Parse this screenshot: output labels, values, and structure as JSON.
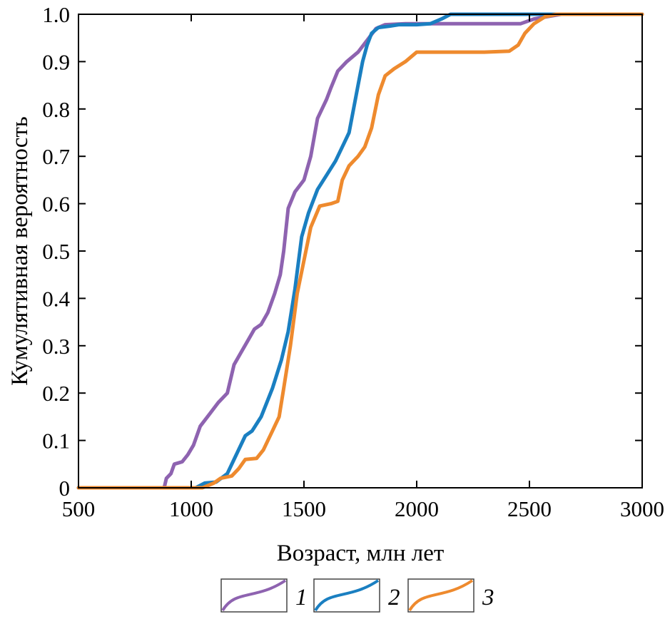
{
  "chart_data": {
    "type": "line",
    "xlabel": "Возраст, млн лет",
    "ylabel": "Кумулятивная вероятность",
    "xlim": [
      500,
      3000
    ],
    "ylim": [
      0,
      1.0
    ],
    "x_ticks": [
      "500",
      "1000",
      "1500",
      "2000",
      "2500",
      "3000"
    ],
    "y_ticks": [
      "0",
      "0.1",
      "0.2",
      "0.3",
      "0.4",
      "0.5",
      "0.6",
      "0.7",
      "0.8",
      "0.9",
      "1.0"
    ],
    "legend_position": "bottom",
    "series": [
      {
        "name": "1",
        "color": "#8E63B0",
        "points": [
          [
            500,
            0
          ],
          [
            880,
            0
          ],
          [
            890,
            0.02
          ],
          [
            910,
            0.03
          ],
          [
            925,
            0.05
          ],
          [
            960,
            0.055
          ],
          [
            985,
            0.07
          ],
          [
            1010,
            0.09
          ],
          [
            1040,
            0.13
          ],
          [
            1080,
            0.155
          ],
          [
            1120,
            0.18
          ],
          [
            1160,
            0.2
          ],
          [
            1190,
            0.26
          ],
          [
            1220,
            0.285
          ],
          [
            1250,
            0.31
          ],
          [
            1280,
            0.335
          ],
          [
            1310,
            0.345
          ],
          [
            1340,
            0.37
          ],
          [
            1370,
            0.41
          ],
          [
            1395,
            0.45
          ],
          [
            1410,
            0.5
          ],
          [
            1430,
            0.59
          ],
          [
            1460,
            0.625
          ],
          [
            1500,
            0.65
          ],
          [
            1530,
            0.7
          ],
          [
            1560,
            0.78
          ],
          [
            1600,
            0.82
          ],
          [
            1620,
            0.845
          ],
          [
            1650,
            0.88
          ],
          [
            1690,
            0.9
          ],
          [
            1740,
            0.92
          ],
          [
            1780,
            0.945
          ],
          [
            1820,
            0.97
          ],
          [
            1860,
            0.978
          ],
          [
            1950,
            0.98
          ],
          [
            2100,
            0.98
          ],
          [
            2460,
            0.98
          ],
          [
            2520,
            0.99
          ],
          [
            2580,
            0.995
          ],
          [
            2640,
            1.0
          ],
          [
            3000,
            1.0
          ]
        ]
      },
      {
        "name": "2",
        "color": "#1A7FC1",
        "points": [
          [
            500,
            0
          ],
          [
            1020,
            0
          ],
          [
            1060,
            0.01
          ],
          [
            1110,
            0.012
          ],
          [
            1160,
            0.03
          ],
          [
            1200,
            0.07
          ],
          [
            1240,
            0.11
          ],
          [
            1270,
            0.12
          ],
          [
            1310,
            0.15
          ],
          [
            1360,
            0.21
          ],
          [
            1400,
            0.27
          ],
          [
            1430,
            0.33
          ],
          [
            1460,
            0.42
          ],
          [
            1490,
            0.53
          ],
          [
            1520,
            0.58
          ],
          [
            1560,
            0.63
          ],
          [
            1600,
            0.66
          ],
          [
            1640,
            0.69
          ],
          [
            1680,
            0.73
          ],
          [
            1700,
            0.75
          ],
          [
            1720,
            0.8
          ],
          [
            1740,
            0.85
          ],
          [
            1760,
            0.9
          ],
          [
            1780,
            0.935
          ],
          [
            1800,
            0.96
          ],
          [
            1830,
            0.972
          ],
          [
            1880,
            0.975
          ],
          [
            1920,
            0.978
          ],
          [
            2000,
            0.978
          ],
          [
            2060,
            0.98
          ],
          [
            2110,
            0.99
          ],
          [
            2150,
            1.0
          ],
          [
            3000,
            1.0
          ]
        ]
      },
      {
        "name": "3",
        "color": "#EE8A2E",
        "points": [
          [
            500,
            0
          ],
          [
            1050,
            0
          ],
          [
            1100,
            0.01
          ],
          [
            1130,
            0.02
          ],
          [
            1180,
            0.025
          ],
          [
            1210,
            0.04
          ],
          [
            1240,
            0.06
          ],
          [
            1290,
            0.062
          ],
          [
            1320,
            0.08
          ],
          [
            1360,
            0.12
          ],
          [
            1390,
            0.15
          ],
          [
            1410,
            0.21
          ],
          [
            1440,
            0.3
          ],
          [
            1470,
            0.41
          ],
          [
            1500,
            0.48
          ],
          [
            1530,
            0.55
          ],
          [
            1570,
            0.595
          ],
          [
            1620,
            0.6
          ],
          [
            1650,
            0.605
          ],
          [
            1670,
            0.65
          ],
          [
            1700,
            0.68
          ],
          [
            1740,
            0.7
          ],
          [
            1770,
            0.72
          ],
          [
            1800,
            0.76
          ],
          [
            1830,
            0.83
          ],
          [
            1860,
            0.87
          ],
          [
            1900,
            0.885
          ],
          [
            1950,
            0.9
          ],
          [
            2000,
            0.92
          ],
          [
            2100,
            0.92
          ],
          [
            2300,
            0.92
          ],
          [
            2410,
            0.922
          ],
          [
            2450,
            0.935
          ],
          [
            2480,
            0.96
          ],
          [
            2520,
            0.98
          ],
          [
            2570,
            0.995
          ],
          [
            2620,
            1.0
          ],
          [
            3000,
            1.0
          ]
        ]
      }
    ]
  }
}
